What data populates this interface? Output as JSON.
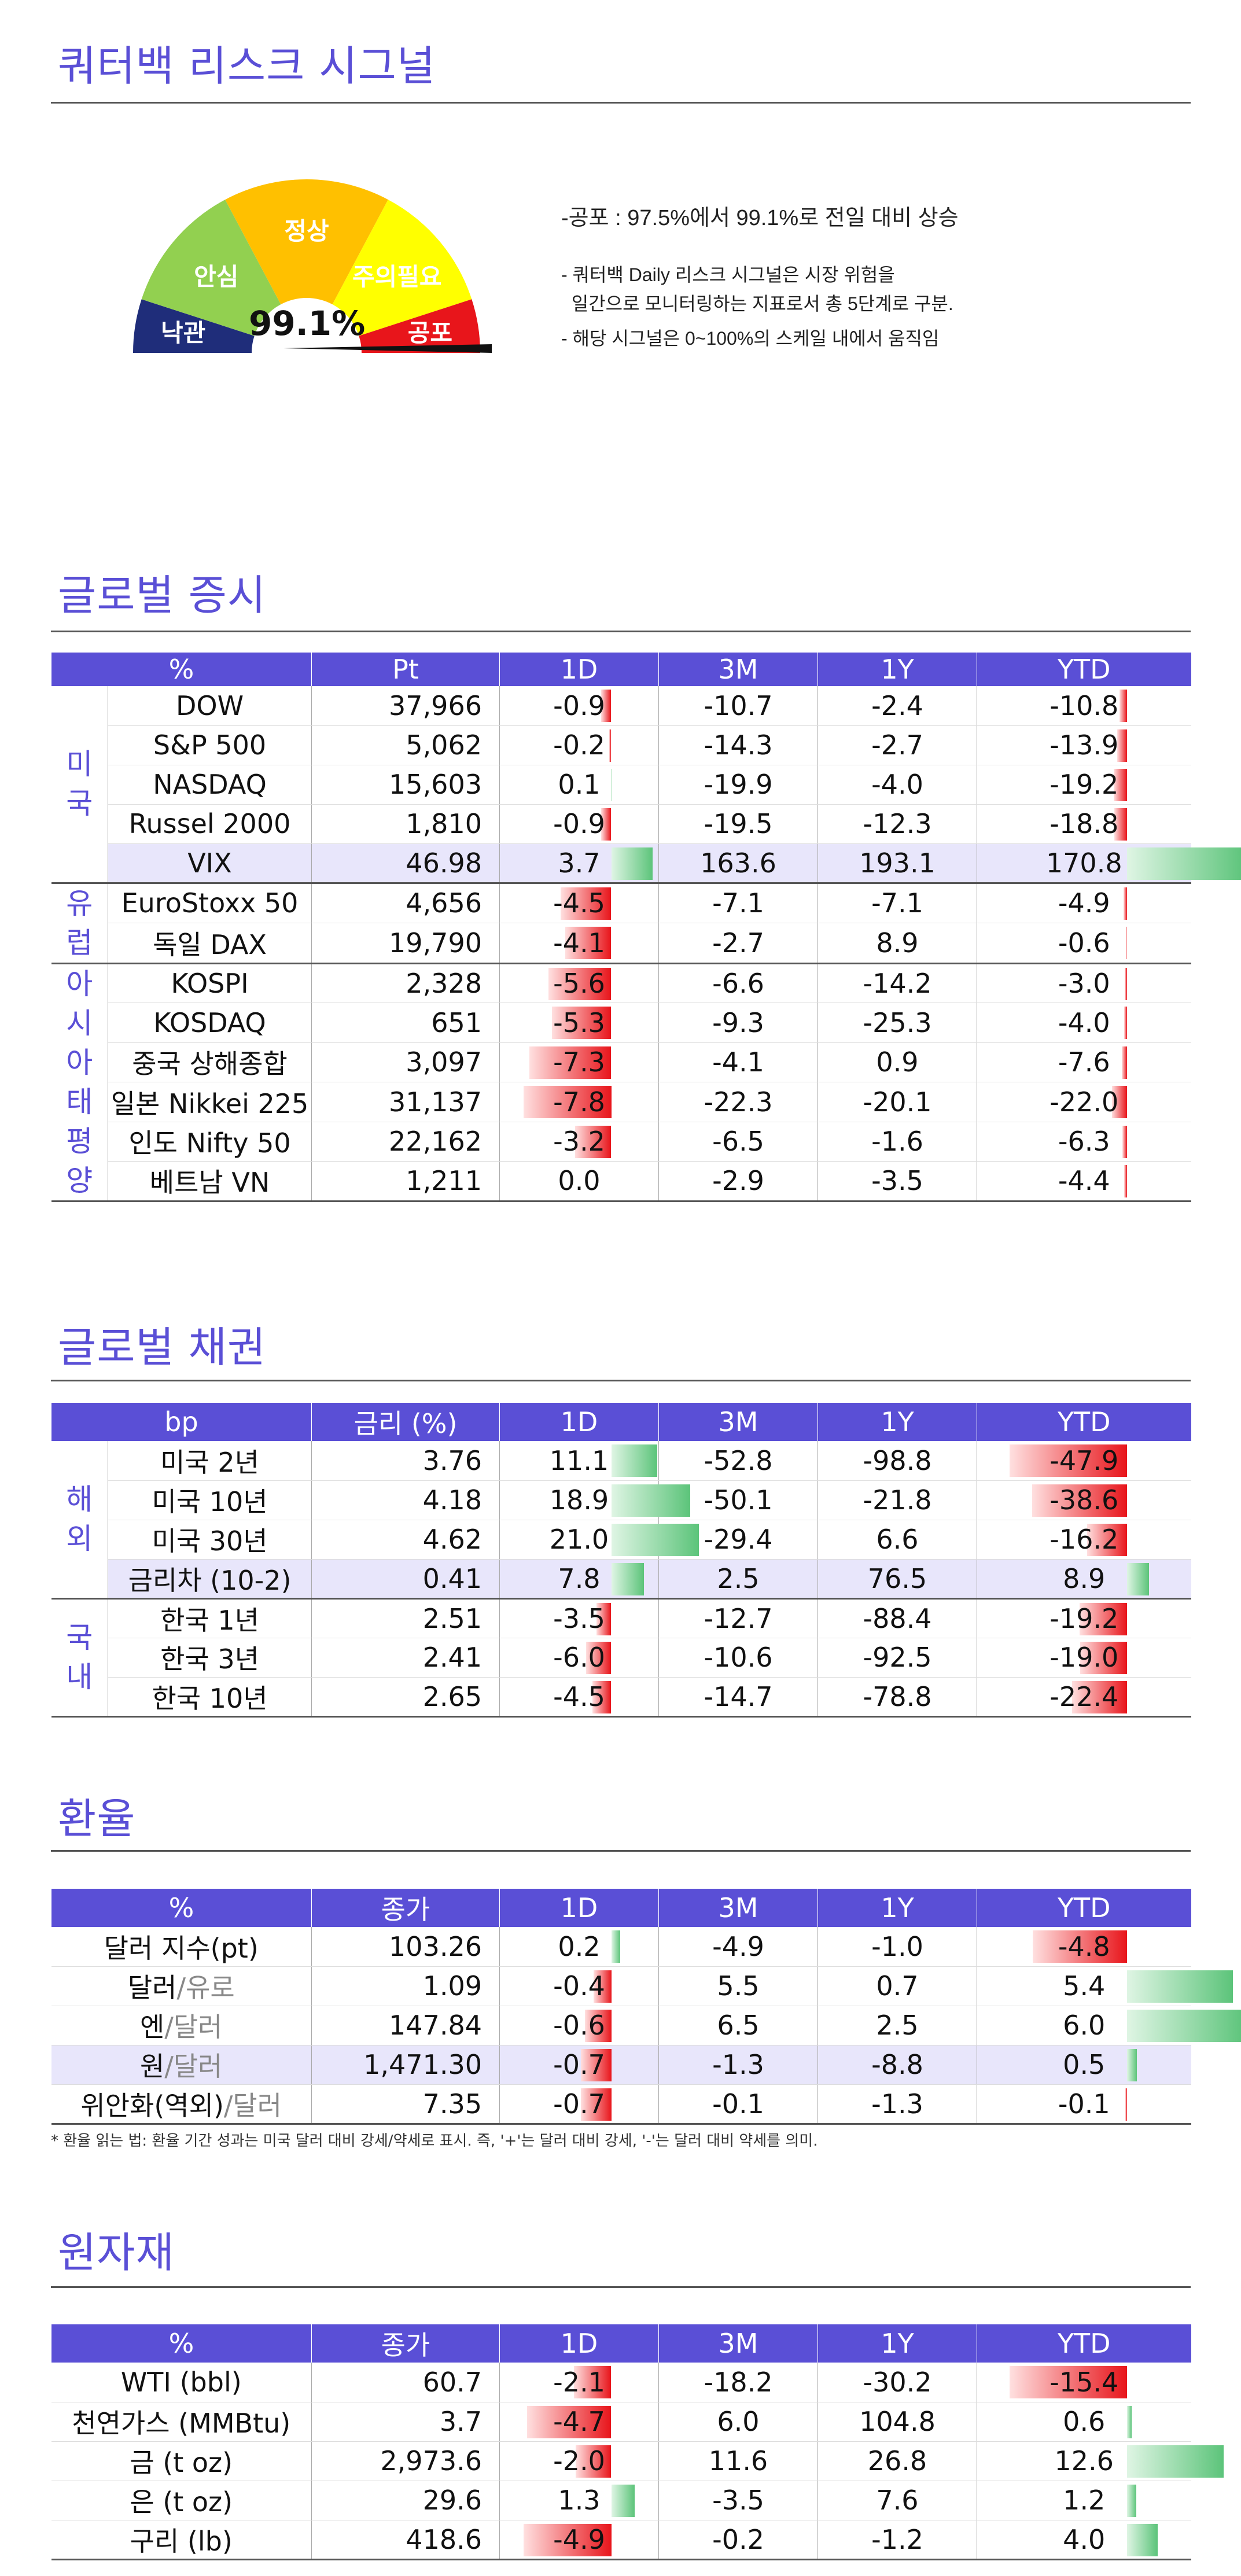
{
  "risk": {
    "title": "쿼터백 리스크 시그널",
    "gauge_labels": [
      "낙관",
      "안심",
      "정상",
      "주의필요",
      "공포"
    ],
    "value": "99.1%",
    "value_fraction": 0.991,
    "note_main": "-공포 : 97.5%에서 99.1%로 전일 대비 상승",
    "note_1": "- 쿼터백 Daily 리스크 시그널은 시장 위험을",
    "note_2": "  일간으로 모니터링하는 지표로서 총 5단계로 구분.",
    "note_3": "- 해당 시그널은 0~100%의 스케일 내에서 움직임"
  },
  "equity": {
    "title": "글로벌 증시",
    "headers": [
      "%",
      "Pt",
      "1D",
      "3M",
      "1Y",
      "YTD"
    ],
    "groups": [
      {
        "label": "미국",
        "rows": [
          {
            "name": "DOW",
            "pt": "37,966",
            "d1": "-0.9",
            "m3": "-10.7",
            "y1": "-2.4",
            "ytd": "-10.8"
          },
          {
            "name": "S&P 500",
            "pt": "5,062",
            "d1": "-0.2",
            "m3": "-14.3",
            "y1": "-2.7",
            "ytd": "-13.9"
          },
          {
            "name": "NASDAQ",
            "pt": "15,603",
            "d1": "0.1",
            "m3": "-19.9",
            "y1": "-4.0",
            "ytd": "-19.2"
          },
          {
            "name": "Russel 2000",
            "pt": "1,810",
            "d1": "-0.9",
            "m3": "-19.5",
            "y1": "-12.3",
            "ytd": "-18.8"
          },
          {
            "name": "VIX",
            "pt": "46.98",
            "d1": "3.7",
            "m3": "163.6",
            "y1": "193.1",
            "ytd": "170.8"
          }
        ]
      },
      {
        "label": "유럽",
        "rows": [
          {
            "name": "EuroStoxx 50",
            "pt": "4,656",
            "d1": "-4.5",
            "m3": "-7.1",
            "y1": "-7.1",
            "ytd": "-4.9"
          },
          {
            "name": "독일 DAX",
            "pt": "19,790",
            "d1": "-4.1",
            "m3": "-2.7",
            "y1": "8.9",
            "ytd": "-0.6"
          }
        ]
      },
      {
        "label": "아시아태평양",
        "rows": [
          {
            "name": "KOSPI",
            "pt": "2,328",
            "d1": "-5.6",
            "m3": "-6.6",
            "y1": "-14.2",
            "ytd": "-3.0"
          },
          {
            "name": "KOSDAQ",
            "pt": "651",
            "d1": "-5.3",
            "m3": "-9.3",
            "y1": "-25.3",
            "ytd": "-4.0"
          },
          {
            "name": "중국 상해종합",
            "pt": "3,097",
            "d1": "-7.3",
            "m3": "-4.1",
            "y1": "0.9",
            "ytd": "-7.6"
          },
          {
            "name": "일본 Nikkei 225",
            "pt": "31,137",
            "d1": "-7.8",
            "m3": "-22.3",
            "y1": "-20.1",
            "ytd": "-22.0"
          },
          {
            "name": "인도 Nifty 50",
            "pt": "22,162",
            "d1": "-3.2",
            "m3": "-6.5",
            "y1": "-1.6",
            "ytd": "-6.3"
          },
          {
            "name": "베트남 VN",
            "pt": "1,211",
            "d1": "0.0",
            "m3": "-2.9",
            "y1": "-3.5",
            "ytd": "-4.4"
          }
        ]
      }
    ]
  },
  "bond": {
    "title": "글로벌 채권",
    "headers": [
      "bp",
      "금리 (%)",
      "1D",
      "3M",
      "1Y",
      "YTD"
    ],
    "groups": [
      {
        "label": "해외",
        "rows": [
          {
            "name": "미국 2년",
            "pt": "3.76",
            "d1": "11.1",
            "m3": "-52.8",
            "y1": "-98.8",
            "ytd": "-47.9"
          },
          {
            "name": "미국 10년",
            "pt": "4.18",
            "d1": "18.9",
            "m3": "-50.1",
            "y1": "-21.8",
            "ytd": "-38.6"
          },
          {
            "name": "미국 30년",
            "pt": "4.62",
            "d1": "21.0",
            "m3": "-29.4",
            "y1": "6.6",
            "ytd": "-16.2"
          },
          {
            "name": "금리차 (10-2)",
            "pt": "0.41",
            "d1": "7.8",
            "m3": "2.5",
            "y1": "76.5",
            "ytd": "8.9"
          }
        ]
      },
      {
        "label": "국내",
        "rows": [
          {
            "name": "한국 1년",
            "pt": "2.51",
            "d1": "-3.5",
            "m3": "-12.7",
            "y1": "-88.4",
            "ytd": "-19.2"
          },
          {
            "name": "한국 3년",
            "pt": "2.41",
            "d1": "-6.0",
            "m3": "-10.6",
            "y1": "-92.5",
            "ytd": "-19.0"
          },
          {
            "name": "한국 10년",
            "pt": "2.65",
            "d1": "-4.5",
            "m3": "-14.7",
            "y1": "-78.8",
            "ytd": "-22.4"
          }
        ]
      }
    ]
  },
  "fx": {
    "title": "환율",
    "headers": [
      "%",
      "종가",
      "1D",
      "3M",
      "1Y",
      "YTD"
    ],
    "rows": [
      {
        "a": "달러 지수(pt)",
        "b": "",
        "pt": "103.26",
        "d1": "0.2",
        "m3": "-4.9",
        "y1": "-1.0",
        "ytd": "-4.8"
      },
      {
        "a": "달러",
        "b": "/유로",
        "pt": "1.09",
        "d1": "-0.4",
        "m3": "5.5",
        "y1": "0.7",
        "ytd": "5.4"
      },
      {
        "a": "엔",
        "b": "/달러",
        "pt": "147.84",
        "d1": "-0.6",
        "m3": "6.5",
        "y1": "2.5",
        "ytd": "6.0"
      },
      {
        "a": "원",
        "b": "/달러",
        "pt": "1,471.30",
        "d1": "-0.7",
        "m3": "-1.3",
        "y1": "-8.8",
        "ytd": "0.5"
      },
      {
        "a": "위안화(역외)",
        "b": "/달러",
        "pt": "7.35",
        "d1": "-0.7",
        "m3": "-0.1",
        "y1": "-1.3",
        "ytd": "-0.1"
      }
    ],
    "footnote": "* 환율 읽는 법: 환율 기간 성과는 미국 달러 대비 강세/약세로 표시. 즉, '+'는 달러 대비 강세, '-'는 달러 대비 약세를 의미."
  },
  "cmdty": {
    "title": "원자재",
    "headers": [
      "%",
      "종가",
      "1D",
      "3M",
      "1Y",
      "YTD"
    ],
    "rows": [
      {
        "name": "WTI (bbl)",
        "pt": "60.7",
        "d1": "-2.1",
        "m3": "-18.2",
        "y1": "-30.2",
        "ytd": "-15.4"
      },
      {
        "name": "천연가스 (MMBtu)",
        "pt": "3.7",
        "d1": "-4.7",
        "m3": "6.0",
        "y1": "104.8",
        "ytd": "0.6"
      },
      {
        "name": "금 (t oz)",
        "pt": "2,973.6",
        "d1": "-2.0",
        "m3": "11.6",
        "y1": "26.8",
        "ytd": "12.6"
      },
      {
        "name": "은 (t oz)",
        "pt": "29.6",
        "d1": "1.3",
        "m3": "-3.5",
        "y1": "7.6",
        "ytd": "1.2"
      },
      {
        "name": "구리 (lb)",
        "pt": "418.6",
        "d1": "-4.9",
        "m3": "-0.2",
        "y1": "-1.2",
        "ytd": "4.0"
      }
    ]
  }
}
